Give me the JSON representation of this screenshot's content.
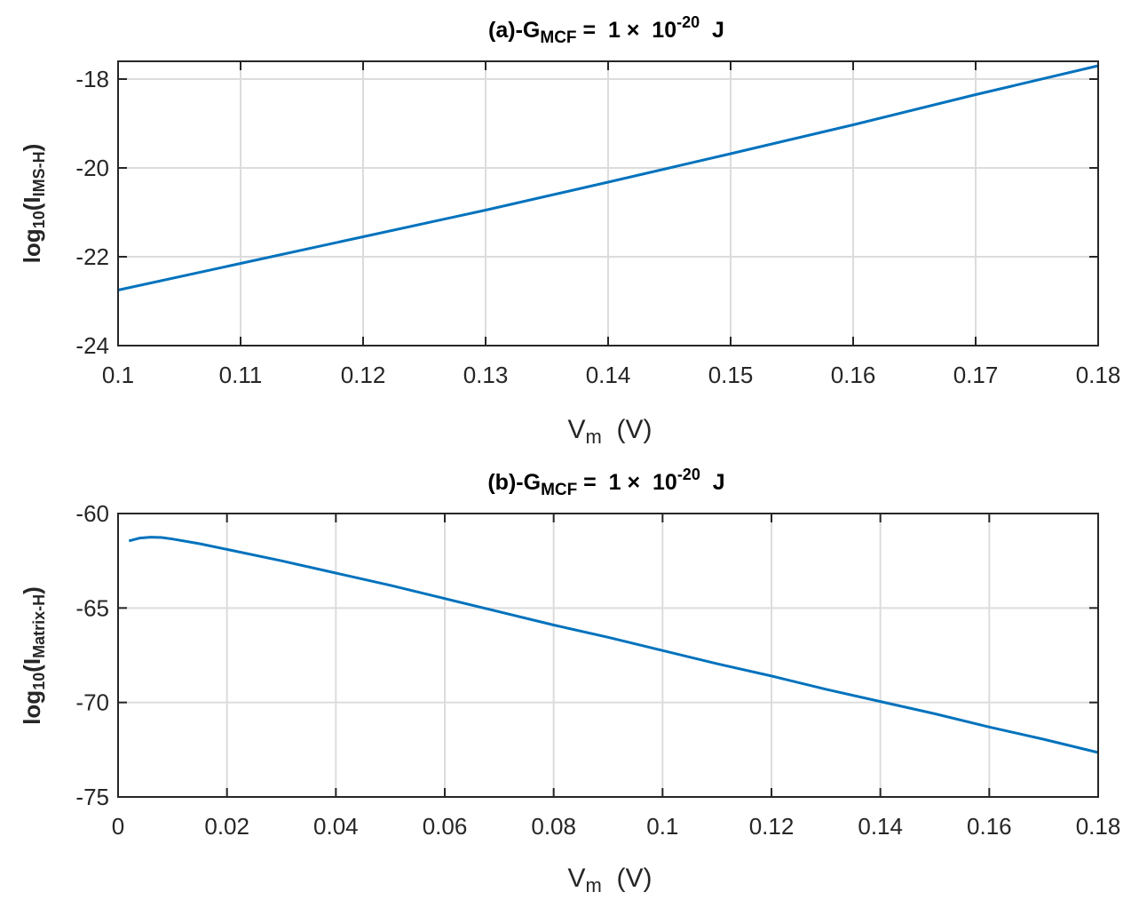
{
  "chart_data": [
    {
      "type": "line",
      "title": {
        "prefix": "(a)-G",
        "sub": "MCF",
        "mid": " =  1 ×  10",
        "sup": "-20",
        "suffix": "  J"
      },
      "xlabel": {
        "main": "V",
        "sub": "m",
        "suffix": "  (V)"
      },
      "ylabel": {
        "prefix": "log",
        "sub1": "10",
        "mid": "(I",
        "sub2": "IMS-H",
        "suffix": ")"
      },
      "xlim": [
        0.1,
        0.18
      ],
      "ylim": [
        -24,
        -17.6
      ],
      "xticks": [
        0.1,
        0.11,
        0.12,
        0.13,
        0.14,
        0.15,
        0.16,
        0.17,
        0.18
      ],
      "xtick_labels": [
        "0.1",
        "0.11",
        "0.12",
        "0.13",
        "0.14",
        "0.15",
        "0.16",
        "0.17",
        "0.18"
      ],
      "yticks": [
        -24,
        -22,
        -20,
        -18
      ],
      "ytick_labels": [
        "-24",
        "-22",
        "-20",
        "-18"
      ],
      "grid": true,
      "series": [
        {
          "color": "#0072BD",
          "x": [
            0.1,
            0.11,
            0.12,
            0.13,
            0.14,
            0.15,
            0.16,
            0.17,
            0.18
          ],
          "y": [
            -22.75,
            -22.15,
            -21.55,
            -20.95,
            -20.32,
            -19.68,
            -19.03,
            -18.35,
            -17.7
          ]
        }
      ]
    },
    {
      "type": "line",
      "title": {
        "prefix": "(b)-G",
        "sub": "MCF",
        "mid": " =  1 ×  10",
        "sup": "-20",
        "suffix": "  J"
      },
      "xlabel": {
        "main": "V",
        "sub": "m",
        "suffix": "  (V)"
      },
      "ylabel": {
        "prefix": "log",
        "sub1": "10",
        "mid": "(I",
        "sub2": "Matrix-H",
        "suffix": ")"
      },
      "xlim": [
        0,
        0.18
      ],
      "ylim": [
        -75,
        -60
      ],
      "xticks": [
        0,
        0.02,
        0.04,
        0.06,
        0.08,
        0.1,
        0.12,
        0.14,
        0.16,
        0.18
      ],
      "xtick_labels": [
        "0",
        "0.02",
        "0.04",
        "0.06",
        "0.08",
        "0.1",
        "0.12",
        "0.14",
        "0.16",
        "0.18"
      ],
      "yticks": [
        -75,
        -70,
        -65,
        -60
      ],
      "ytick_labels": [
        "-75",
        "-70",
        "-65",
        "-60"
      ],
      "grid": true,
      "series": [
        {
          "color": "#0072BD",
          "x": [
            0.002,
            0.004,
            0.006,
            0.008,
            0.01,
            0.015,
            0.02,
            0.03,
            0.04,
            0.05,
            0.06,
            0.07,
            0.08,
            0.09,
            0.1,
            0.11,
            0.12,
            0.13,
            0.14,
            0.15,
            0.16,
            0.17,
            0.18
          ],
          "y": [
            -61.45,
            -61.3,
            -61.25,
            -61.27,
            -61.35,
            -61.6,
            -61.9,
            -62.5,
            -63.15,
            -63.8,
            -64.5,
            -65.2,
            -65.9,
            -66.55,
            -67.25,
            -67.95,
            -68.6,
            -69.3,
            -69.95,
            -70.6,
            -71.3,
            -71.95,
            -72.65
          ]
        }
      ]
    }
  ]
}
